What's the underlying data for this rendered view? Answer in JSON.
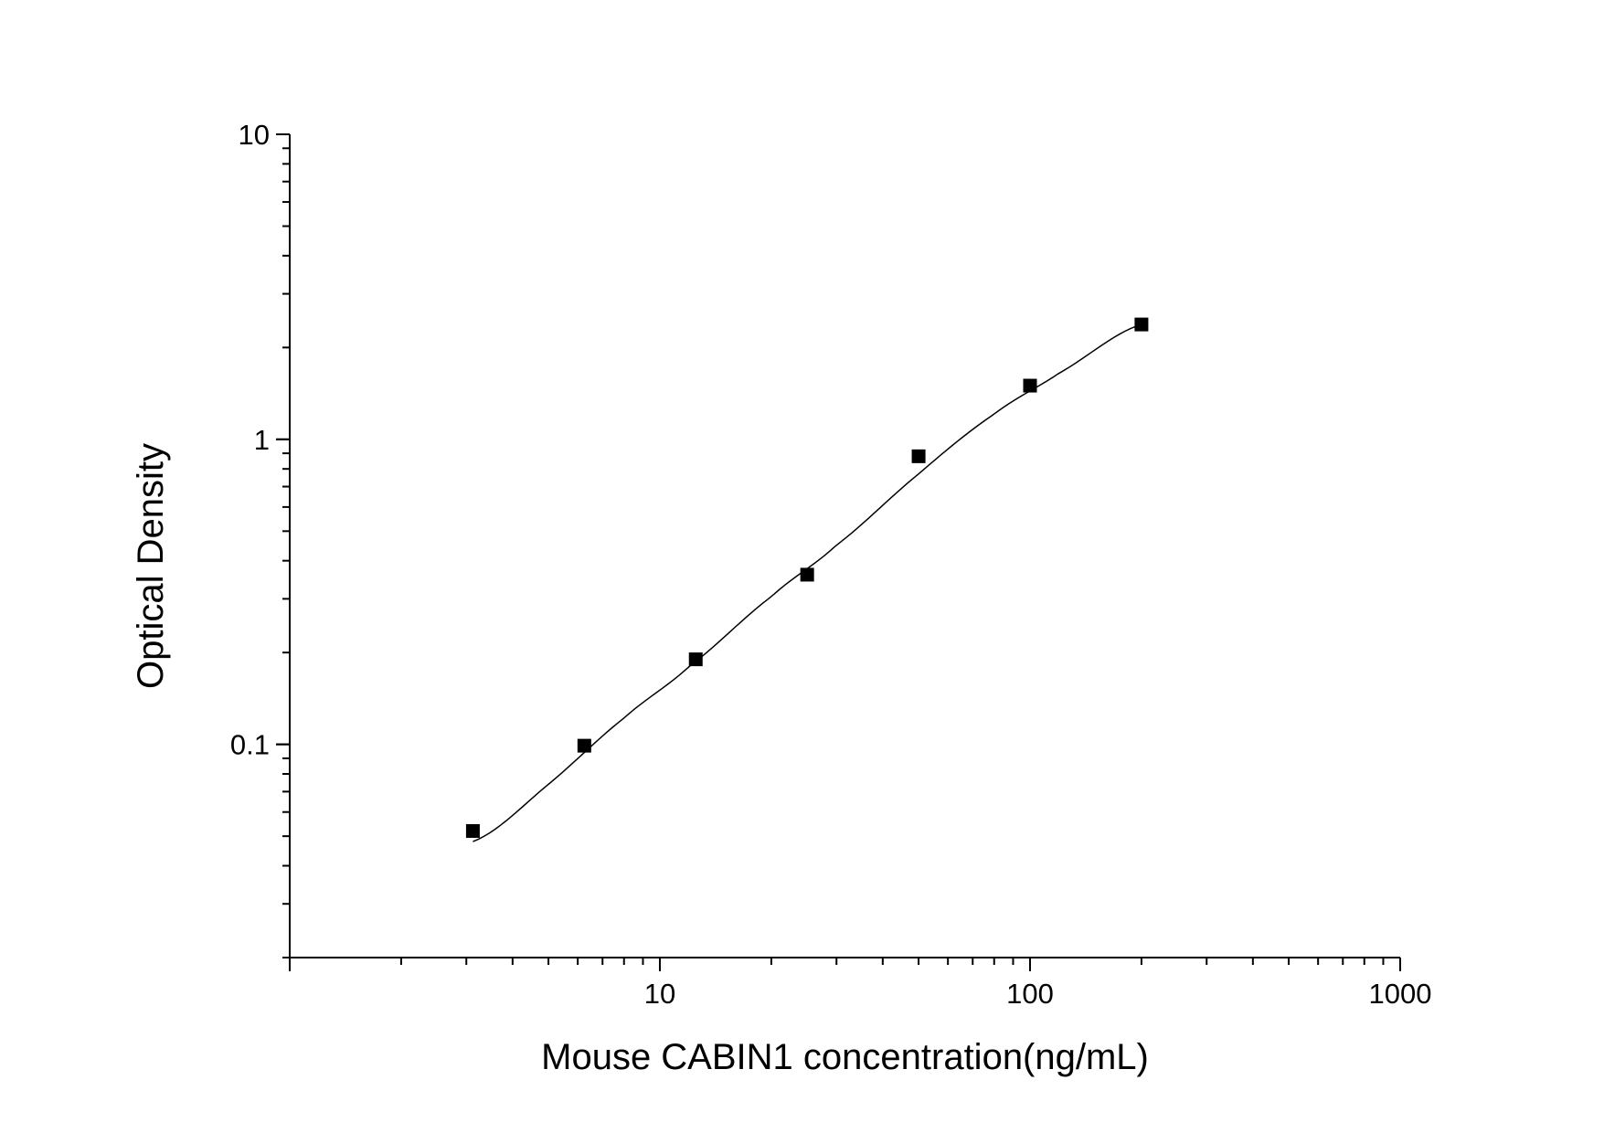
{
  "chart_data": {
    "type": "scatter",
    "title": "",
    "xlabel": "Mouse CABIN1 concentration(ng/mL)",
    "ylabel": "Optical Density",
    "x_scale": "log",
    "y_scale": "log",
    "xlim": [
      1,
      1000
    ],
    "ylim": [
      0.02,
      10
    ],
    "x_ticks": [
      {
        "value": 10,
        "label": "10"
      },
      {
        "value": 100,
        "label": "100"
      },
      {
        "value": 1000,
        "label": "1000"
      }
    ],
    "y_ticks": [
      {
        "value": 0.1,
        "label": "0.1"
      },
      {
        "value": 1,
        "label": "1"
      },
      {
        "value": 10,
        "label": "10"
      }
    ],
    "grid": false,
    "legend": "none",
    "series": [
      {
        "marker": "square",
        "color": "#000000",
        "x": [
          3.125,
          6.25,
          12.5,
          25,
          50,
          100,
          200
        ],
        "y": [
          0.052,
          0.099,
          0.19,
          0.36,
          0.88,
          1.5,
          2.38
        ]
      }
    ],
    "fit_curve": {
      "color": "#000000",
      "x_range": [
        3.125,
        200
      ],
      "x": [
        3.125,
        5,
        8,
        12,
        20,
        30,
        50,
        80,
        120,
        200
      ],
      "y": [
        0.048,
        0.074,
        0.122,
        0.18,
        0.305,
        0.45,
        0.77,
        1.21,
        1.65,
        2.38
      ]
    }
  }
}
